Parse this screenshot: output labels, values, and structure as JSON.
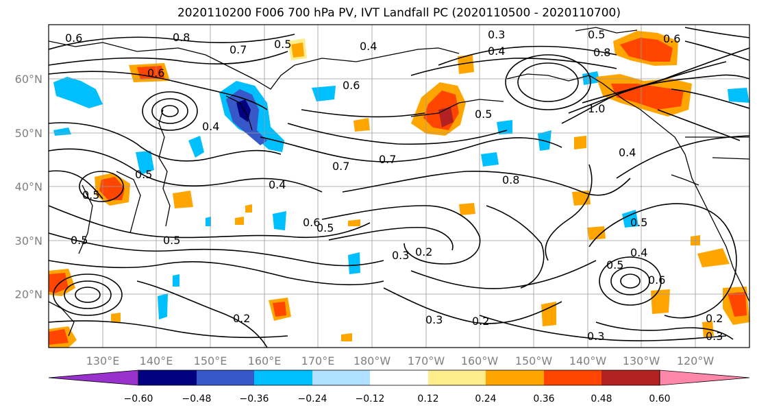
{
  "title": "2020110200 F006 700 hPa PV, IVT Landfall PC (2020110500 - 2020110700)",
  "lon_ticks": [
    "130°E",
    "140°E",
    "150°E",
    "160°E",
    "170°E",
    "180°W",
    "170°W",
    "160°W",
    "150°W",
    "140°W",
    "130°W",
    "120°W"
  ],
  "lat_ticks": [
    "60°N",
    "50°N",
    "40°N",
    "30°N",
    "20°N"
  ],
  "colorbar": {
    "labels": [
      "−0.60",
      "−0.48",
      "−0.36",
      "−0.24",
      "−0.12",
      "0.12",
      "0.24",
      "0.36",
      "0.48",
      "0.60"
    ],
    "colors": [
      "#9932cc",
      "#000080",
      "#3658c8",
      "#00bfff",
      "#b0e2ff",
      "#ffffff",
      "#ffec8b",
      "#ffa500",
      "#ff4500",
      "#b22222",
      "#ff88aa"
    ]
  },
  "contour_labels": [
    "0.6",
    "0.8",
    "0.7",
    "0.5",
    "0.4",
    "0.3",
    "0.5",
    "0.6",
    "0.4",
    "0.6",
    "0.8",
    "0.6",
    "1.0",
    "0.5",
    "0.4",
    "0.5",
    "0.7",
    "0.7",
    "0.8",
    "0.4",
    "0.4",
    "0.5",
    "0.5",
    "0.5",
    "0.6",
    "0.5",
    "0.2",
    "0.3",
    "0.5",
    "0.4",
    "0.6",
    "0.3",
    "0.2",
    "0.2",
    "0.3",
    "0.3",
    "0.2",
    "0.5"
  ]
}
